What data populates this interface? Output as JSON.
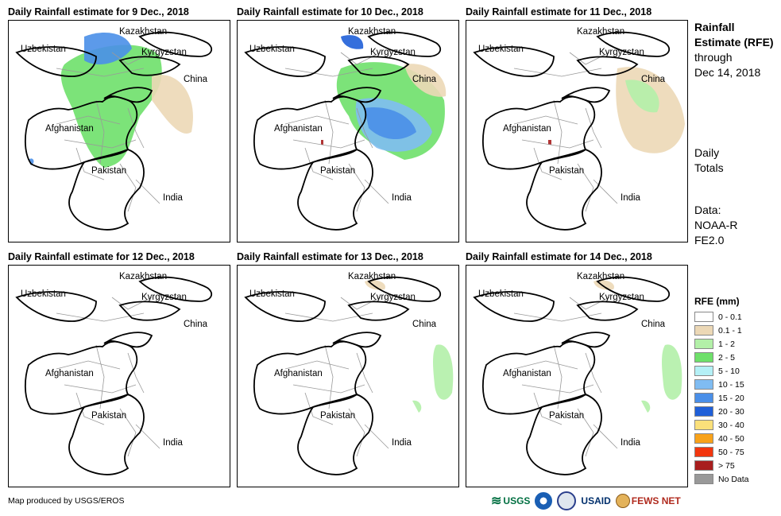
{
  "panels": [
    {
      "title": "Daily Rainfall estimate for 9 Dec., 2018",
      "rain": "heavy-north"
    },
    {
      "title": "Daily Rainfall estimate for 10 Dec., 2018",
      "rain": "heavy-center"
    },
    {
      "title": "Daily Rainfall estimate for 11 Dec., 2018",
      "rain": "east"
    },
    {
      "title": "Daily Rainfall estimate for 12 Dec., 2018",
      "rain": "none"
    },
    {
      "title": "Daily Rainfall estimate for 13 Dec., 2018",
      "rain": "light"
    },
    {
      "title": "Daily Rainfall estimate for 14 Dec., 2018",
      "rain": "light"
    }
  ],
  "map_labels": {
    "kazakhstan": "Kazakhstan",
    "uzbekistan": "Uzbekistan",
    "kyrgyzstan": "Kyrgyzstan",
    "china": "China",
    "afghanistan": "Afghanistan",
    "pakistan": "Pakistan",
    "india": "India"
  },
  "side": {
    "title_bold": "Rainfall Estimate (RFE)",
    "through": "through",
    "date": "Dec 14, 2018",
    "daily_totals": "Daily Totals",
    "data_label": "Data:",
    "data_source": "NOAA-RFE2.0"
  },
  "legend": {
    "title": "RFE (mm)",
    "items": [
      {
        "label": "0 - 0.1",
        "color": "#ffffff"
      },
      {
        "label": "0.1 - 1",
        "color": "#ecd8b6"
      },
      {
        "label": "1 - 2",
        "color": "#b3f0a8"
      },
      {
        "label": "2 - 5",
        "color": "#6ee06a"
      },
      {
        "label": "5 - 10",
        "color": "#b4f0f6"
      },
      {
        "label": "10 - 15",
        "color": "#7fbcf2"
      },
      {
        "label": "15 - 20",
        "color": "#4a8fe8"
      },
      {
        "label": "20 - 30",
        "color": "#1f5fd8"
      },
      {
        "label": "30 - 40",
        "color": "#fbe07a"
      },
      {
        "label": "40 - 50",
        "color": "#f8a21a"
      },
      {
        "label": "50 - 75",
        "color": "#f2360e"
      },
      {
        "label": "> 75",
        "color": "#a81e1e"
      },
      {
        "label": "No Data",
        "color": "#999999"
      }
    ]
  },
  "credit": "Map produced by USGS/EROS",
  "logos": {
    "usgs": "USGS",
    "usaid": "USAID",
    "fewsnet": "FEWS NET"
  }
}
